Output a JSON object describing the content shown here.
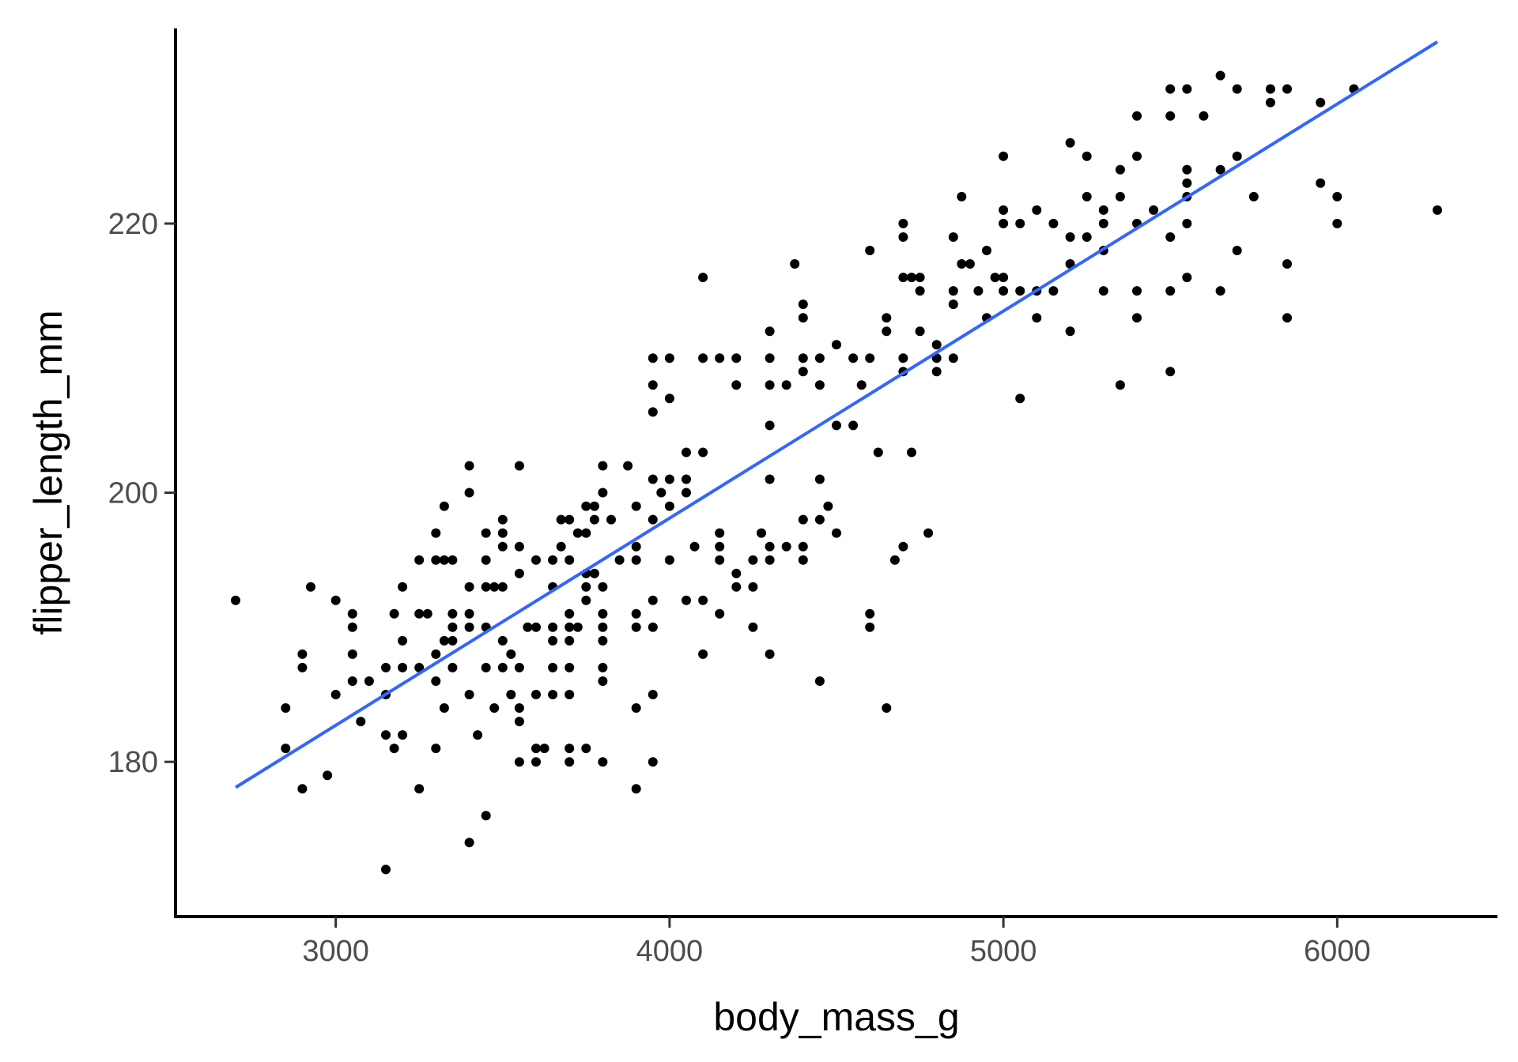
{
  "chart_data": {
    "type": "scatter",
    "title": "",
    "xlabel": "body_mass_g",
    "ylabel": "flipper_length_mm",
    "xlim": [
      2520,
      6480
    ],
    "ylim": [
      168.5,
      234.5
    ],
    "x_ticks": [
      3000,
      4000,
      5000,
      6000
    ],
    "y_ticks": [
      180,
      200,
      220
    ],
    "grid": false,
    "legend": "none",
    "colors": {
      "points": "#000000",
      "fit_line": "#3366ff",
      "axis": "#000000"
    },
    "fit_line": {
      "x": [
        2700,
        6300
      ],
      "y": [
        178.1,
        233.5
      ]
    },
    "points": [
      [
        2700,
        192
      ],
      [
        2850,
        184
      ],
      [
        2850,
        181
      ],
      [
        2900,
        178
      ],
      [
        2900,
        188
      ],
      [
        2900,
        187
      ],
      [
        2925,
        193
      ],
      [
        2975,
        179
      ],
      [
        3000,
        192
      ],
      [
        3000,
        185
      ],
      [
        3050,
        191
      ],
      [
        3050,
        190
      ],
      [
        3050,
        188
      ],
      [
        3050,
        186
      ],
      [
        3075,
        183
      ],
      [
        3100,
        186
      ],
      [
        3150,
        182
      ],
      [
        3150,
        187
      ],
      [
        3150,
        185
      ],
      [
        3150,
        172
      ],
      [
        3175,
        181
      ],
      [
        3175,
        191
      ],
      [
        3200,
        182
      ],
      [
        3200,
        187
      ],
      [
        3200,
        189
      ],
      [
        3200,
        193
      ],
      [
        3250,
        187
      ],
      [
        3250,
        178
      ],
      [
        3250,
        195
      ],
      [
        3250,
        191
      ],
      [
        3275,
        191
      ],
      [
        3300,
        195
      ],
      [
        3300,
        197
      ],
      [
        3300,
        188
      ],
      [
        3300,
        186
      ],
      [
        3300,
        181
      ],
      [
        3325,
        195
      ],
      [
        3325,
        199
      ],
      [
        3325,
        189
      ],
      [
        3325,
        184
      ],
      [
        3350,
        190
      ],
      [
        3350,
        187
      ],
      [
        3350,
        195
      ],
      [
        3350,
        189
      ],
      [
        3350,
        191
      ],
      [
        3400,
        193
      ],
      [
        3400,
        185
      ],
      [
        3400,
        174
      ],
      [
        3400,
        202
      ],
      [
        3400,
        200
      ],
      [
        3400,
        191
      ],
      [
        3400,
        190
      ],
      [
        3425,
        182
      ],
      [
        3450,
        197
      ],
      [
        3450,
        195
      ],
      [
        3450,
        193
      ],
      [
        3450,
        190
      ],
      [
        3450,
        187
      ],
      [
        3450,
        176
      ],
      [
        3475,
        193
      ],
      [
        3475,
        184
      ],
      [
        3500,
        198
      ],
      [
        3500,
        197
      ],
      [
        3500,
        196
      ],
      [
        3500,
        193
      ],
      [
        3500,
        189
      ],
      [
        3500,
        187
      ],
      [
        3525,
        188
      ],
      [
        3525,
        185
      ],
      [
        3550,
        202
      ],
      [
        3550,
        196
      ],
      [
        3550,
        194
      ],
      [
        3550,
        187
      ],
      [
        3550,
        184
      ],
      [
        3550,
        183
      ],
      [
        3550,
        180
      ],
      [
        3575,
        190
      ],
      [
        3600,
        195
      ],
      [
        3600,
        190
      ],
      [
        3600,
        185
      ],
      [
        3600,
        181
      ],
      [
        3600,
        180
      ],
      [
        3625,
        181
      ],
      [
        3650,
        195
      ],
      [
        3650,
        193
      ],
      [
        3650,
        190
      ],
      [
        3650,
        189
      ],
      [
        3650,
        187
      ],
      [
        3650,
        185
      ],
      [
        3675,
        196
      ],
      [
        3675,
        198
      ],
      [
        3700,
        198
      ],
      [
        3700,
        195
      ],
      [
        3700,
        191
      ],
      [
        3700,
        190
      ],
      [
        3700,
        189
      ],
      [
        3700,
        187
      ],
      [
        3700,
        185
      ],
      [
        3700,
        181
      ],
      [
        3700,
        180
      ],
      [
        3725,
        197
      ],
      [
        3725,
        190
      ],
      [
        3750,
        199
      ],
      [
        3750,
        197
      ],
      [
        3750,
        194
      ],
      [
        3750,
        193
      ],
      [
        3750,
        192
      ],
      [
        3750,
        181
      ],
      [
        3775,
        199
      ],
      [
        3775,
        198
      ],
      [
        3775,
        194
      ],
      [
        3800,
        202
      ],
      [
        3800,
        200
      ],
      [
        3800,
        193
      ],
      [
        3800,
        191
      ],
      [
        3800,
        190
      ],
      [
        3800,
        189
      ],
      [
        3800,
        187
      ],
      [
        3800,
        186
      ],
      [
        3800,
        180
      ],
      [
        3825,
        198
      ],
      [
        3850,
        195
      ],
      [
        3875,
        202
      ],
      [
        3900,
        199
      ],
      [
        3900,
        196
      ],
      [
        3900,
        195
      ],
      [
        3900,
        191
      ],
      [
        3900,
        190
      ],
      [
        3900,
        184
      ],
      [
        3900,
        178
      ],
      [
        3950,
        210
      ],
      [
        3950,
        208
      ],
      [
        3950,
        206
      ],
      [
        3950,
        201
      ],
      [
        3950,
        198
      ],
      [
        3950,
        192
      ],
      [
        3950,
        190
      ],
      [
        3950,
        185
      ],
      [
        3950,
        180
      ],
      [
        3975,
        200
      ],
      [
        4000,
        210
      ],
      [
        4000,
        207
      ],
      [
        4000,
        201
      ],
      [
        4000,
        199
      ],
      [
        4000,
        195
      ],
      [
        4050,
        203
      ],
      [
        4050,
        201
      ],
      [
        4050,
        200
      ],
      [
        4050,
        192
      ],
      [
        4075,
        196
      ],
      [
        4100,
        216
      ],
      [
        4100,
        210
      ],
      [
        4100,
        203
      ],
      [
        4100,
        192
      ],
      [
        4100,
        188
      ],
      [
        4150,
        210
      ],
      [
        4150,
        197
      ],
      [
        4150,
        196
      ],
      [
        4150,
        195
      ],
      [
        4150,
        191
      ],
      [
        4200,
        210
      ],
      [
        4200,
        208
      ],
      [
        4200,
        194
      ],
      [
        4200,
        193
      ],
      [
        4250,
        195
      ],
      [
        4250,
        193
      ],
      [
        4250,
        190
      ],
      [
        4275,
        197
      ],
      [
        4300,
        212
      ],
      [
        4300,
        210
      ],
      [
        4300,
        208
      ],
      [
        4300,
        205
      ],
      [
        4300,
        201
      ],
      [
        4300,
        196
      ],
      [
        4300,
        195
      ],
      [
        4300,
        188
      ],
      [
        4350,
        208
      ],
      [
        4350,
        196
      ],
      [
        4375,
        217
      ],
      [
        4400,
        214
      ],
      [
        4400,
        213
      ],
      [
        4400,
        210
      ],
      [
        4400,
        209
      ],
      [
        4400,
        198
      ],
      [
        4400,
        196
      ],
      [
        4400,
        195
      ],
      [
        4450,
        210
      ],
      [
        4450,
        208
      ],
      [
        4450,
        201
      ],
      [
        4450,
        198
      ],
      [
        4450,
        186
      ],
      [
        4475,
        199
      ],
      [
        4500,
        211
      ],
      [
        4500,
        205
      ],
      [
        4500,
        197
      ],
      [
        4550,
        210
      ],
      [
        4550,
        205
      ],
      [
        4575,
        208
      ],
      [
        4600,
        218
      ],
      [
        4600,
        210
      ],
      [
        4600,
        191
      ],
      [
        4600,
        190
      ],
      [
        4625,
        203
      ],
      [
        4650,
        213
      ],
      [
        4650,
        212
      ],
      [
        4650,
        184
      ],
      [
        4675,
        195
      ],
      [
        4700,
        220
      ],
      [
        4700,
        219
      ],
      [
        4700,
        216
      ],
      [
        4700,
        210
      ],
      [
        4700,
        209
      ],
      [
        4700,
        196
      ],
      [
        4725,
        216
      ],
      [
        4725,
        203
      ],
      [
        4750,
        216
      ],
      [
        4750,
        215
      ],
      [
        4750,
        212
      ],
      [
        4775,
        197
      ],
      [
        4800,
        211
      ],
      [
        4800,
        210
      ],
      [
        4800,
        209
      ],
      [
        4850,
        219
      ],
      [
        4850,
        215
      ],
      [
        4850,
        214
      ],
      [
        4850,
        210
      ],
      [
        4875,
        222
      ],
      [
        4875,
        217
      ],
      [
        4900,
        217
      ],
      [
        4925,
        215
      ],
      [
        4950,
        218
      ],
      [
        4950,
        213
      ],
      [
        4975,
        216
      ],
      [
        5000,
        225
      ],
      [
        5000,
        221
      ],
      [
        5000,
        220
      ],
      [
        5000,
        216
      ],
      [
        5000,
        215
      ],
      [
        5050,
        220
      ],
      [
        5050,
        215
      ],
      [
        5050,
        207
      ],
      [
        5100,
        221
      ],
      [
        5100,
        215
      ],
      [
        5100,
        213
      ],
      [
        5150,
        220
      ],
      [
        5150,
        215
      ],
      [
        5200,
        226
      ],
      [
        5200,
        219
      ],
      [
        5200,
        217
      ],
      [
        5200,
        212
      ],
      [
        5250,
        225
      ],
      [
        5250,
        222
      ],
      [
        5250,
        219
      ],
      [
        5300,
        221
      ],
      [
        5300,
        220
      ],
      [
        5300,
        218
      ],
      [
        5300,
        215
      ],
      [
        5350,
        224
      ],
      [
        5350,
        222
      ],
      [
        5350,
        208
      ],
      [
        5400,
        228
      ],
      [
        5400,
        225
      ],
      [
        5400,
        220
      ],
      [
        5400,
        215
      ],
      [
        5400,
        213
      ],
      [
        5450,
        221
      ],
      [
        5500,
        230
      ],
      [
        5500,
        228
      ],
      [
        5500,
        219
      ],
      [
        5500,
        215
      ],
      [
        5500,
        209
      ],
      [
        5550,
        230
      ],
      [
        5550,
        224
      ],
      [
        5550,
        223
      ],
      [
        5550,
        222
      ],
      [
        5550,
        220
      ],
      [
        5550,
        216
      ],
      [
        5600,
        228
      ],
      [
        5650,
        231
      ],
      [
        5650,
        224
      ],
      [
        5650,
        215
      ],
      [
        5700,
        230
      ],
      [
        5700,
        225
      ],
      [
        5700,
        218
      ],
      [
        5750,
        222
      ],
      [
        5800,
        230
      ],
      [
        5800,
        229
      ],
      [
        5850,
        230
      ],
      [
        5850,
        217
      ],
      [
        5850,
        213
      ],
      [
        5950,
        229
      ],
      [
        5950,
        223
      ],
      [
        6000,
        222
      ],
      [
        6000,
        220
      ],
      [
        6050,
        230
      ],
      [
        6300,
        221
      ]
    ]
  }
}
